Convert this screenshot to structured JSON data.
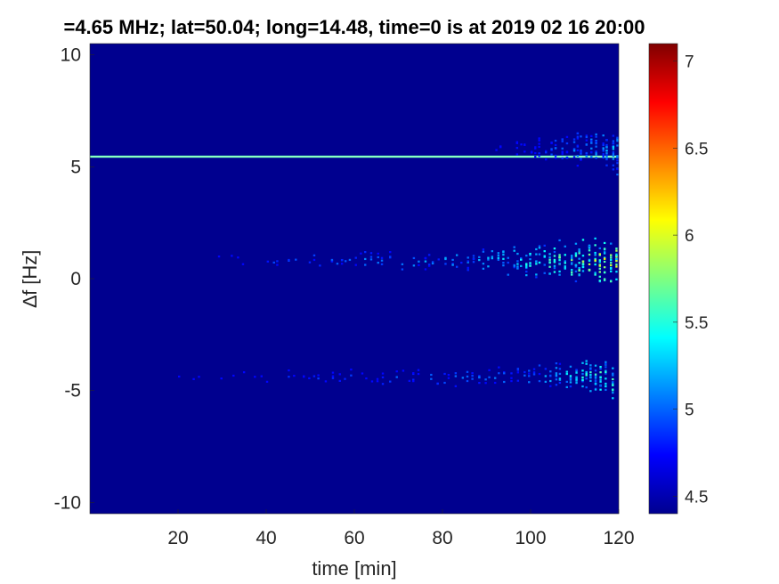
{
  "chart_data": {
    "type": "heatmap",
    "title": "=4.65 MHz;  lat=50.04; long=14.48, time=0 is at 2019 02 16 20:00",
    "xlabel": "time [min]",
    "ylabel": "∆f [Hz]",
    "xlim": [
      0,
      120
    ],
    "ylim": [
      -10.5,
      10.5
    ],
    "xticks": [
      20,
      40,
      60,
      80,
      100,
      120
    ],
    "yticks": [
      10,
      5,
      0,
      -5,
      -10
    ],
    "colormap": "jet",
    "colorbar": {
      "range": [
        4.4,
        7.1
      ],
      "ticks": [
        "7",
        "6.5",
        "6",
        "5.5",
        "5",
        "4.5"
      ],
      "tick_values": [
        7,
        6.5,
        6,
        5.5,
        5,
        4.5
      ]
    },
    "background_value": 4.4,
    "features": [
      {
        "kind": "carrier_line",
        "df": 5.45,
        "t_start": 0,
        "t_end": 120,
        "value": 5.6
      },
      {
        "kind": "doppler_band",
        "df_center": 0.8,
        "t_start": 25,
        "t_end": 120,
        "onset": 90,
        "peak_value": 6.3
      },
      {
        "kind": "doppler_band",
        "df_center": -4.4,
        "t_start": 20,
        "t_end": 120,
        "onset": 100,
        "peak_value": 5.9
      },
      {
        "kind": "doppler_band",
        "df_center": 5.8,
        "t_start": 92,
        "t_end": 120,
        "onset": 100,
        "peak_value": 5.4
      }
    ]
  }
}
